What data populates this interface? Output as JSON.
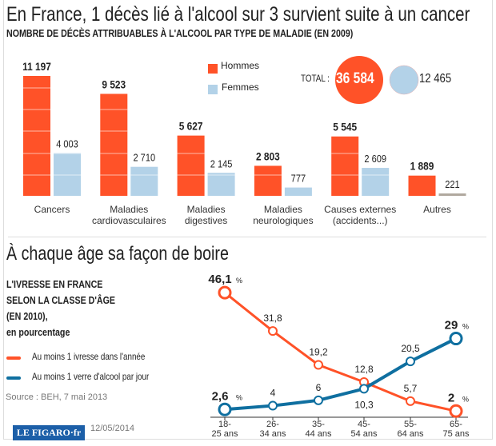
{
  "title": "En France, 1 décès lié à l'alcool sur 3 survient suite à un cancer",
  "colors": {
    "hommes": "#ff5228",
    "femmes": "#b3d2e8",
    "autres_femmes": "#b0a89e",
    "line_orange": "#ff5228",
    "line_blue": "#0f6fa0",
    "logo_bg": "#1c5fa8"
  },
  "chart_data": [
    {
      "type": "bar",
      "title": "NOMBRE DE DÉCÈS ATTRIBUABLES À L'ALCOOL PAR TYPE DE MALADIE (EN 2009)",
      "categories": [
        "Cancers",
        "Maladies cardiovasculaires",
        "Maladies digestives",
        "Maladies neurologiques",
        "Causes externes (accidents...)",
        "Autres"
      ],
      "category_lines": [
        [
          "Cancers"
        ],
        [
          "Maladies",
          "cardiovasculaires"
        ],
        [
          "Maladies",
          "digestives"
        ],
        [
          "Maladies",
          "neurologiques"
        ],
        [
          "Causes externes",
          "(accidents...)"
        ],
        [
          "Autres"
        ]
      ],
      "series": [
        {
          "name": "Hommes",
          "values": [
            11197,
            9523,
            5627,
            2803,
            5545,
            1889
          ],
          "labels": [
            "11 197",
            "9 523",
            "5 627",
            "2 803",
            "5 545",
            "1 889"
          ]
        },
        {
          "name": "Femmes",
          "values": [
            4003,
            2710,
            2145,
            777,
            2609,
            221
          ],
          "labels": [
            "4 003",
            "2 710",
            "2 145",
            "777",
            "2 609",
            "221"
          ]
        }
      ],
      "totals": {
        "label": "TOTAL :",
        "hommes": "36 584",
        "femmes": "12 465"
      },
      "legend": "top-center",
      "grid": true
    },
    {
      "type": "line",
      "heading": "À chaque âge sa façon de boire",
      "title_lines": [
        "L'IVRESSE EN FRANCE",
        "SELON LA CLASSE D'ÂGE",
        "(EN 2010),",
        "en pourcentage"
      ],
      "categories": [
        [
          "18-",
          "25 ans"
        ],
        [
          "26-",
          "34 ans"
        ],
        [
          "35-",
          "44 ans"
        ],
        [
          "45-",
          "54 ans"
        ],
        [
          "55-",
          "64 ans"
        ],
        [
          "65-",
          "75 ans"
        ]
      ],
      "series": [
        {
          "name": "Au moins 1 ivresse dans l'année",
          "values": [
            46.1,
            31.8,
            19.2,
            12.8,
            5.7,
            2
          ],
          "labels": [
            "46,1",
            "31,8",
            "19,2",
            "12,8",
            "5,7",
            "2"
          ]
        },
        {
          "name": "Au moins 1 verre d'alcool par jour",
          "values": [
            2.6,
            4,
            6,
            10.3,
            20.5,
            29
          ],
          "labels": [
            "2,6",
            "4",
            "6",
            "10,3",
            "20,5",
            "29"
          ]
        }
      ],
      "unit": "%",
      "ylim": [
        0,
        50
      ]
    }
  ],
  "footer": {
    "source": "Source : BEH, 7 mai 2013",
    "date": "12/05/2014",
    "logo": "LE FIGARO·fr"
  }
}
